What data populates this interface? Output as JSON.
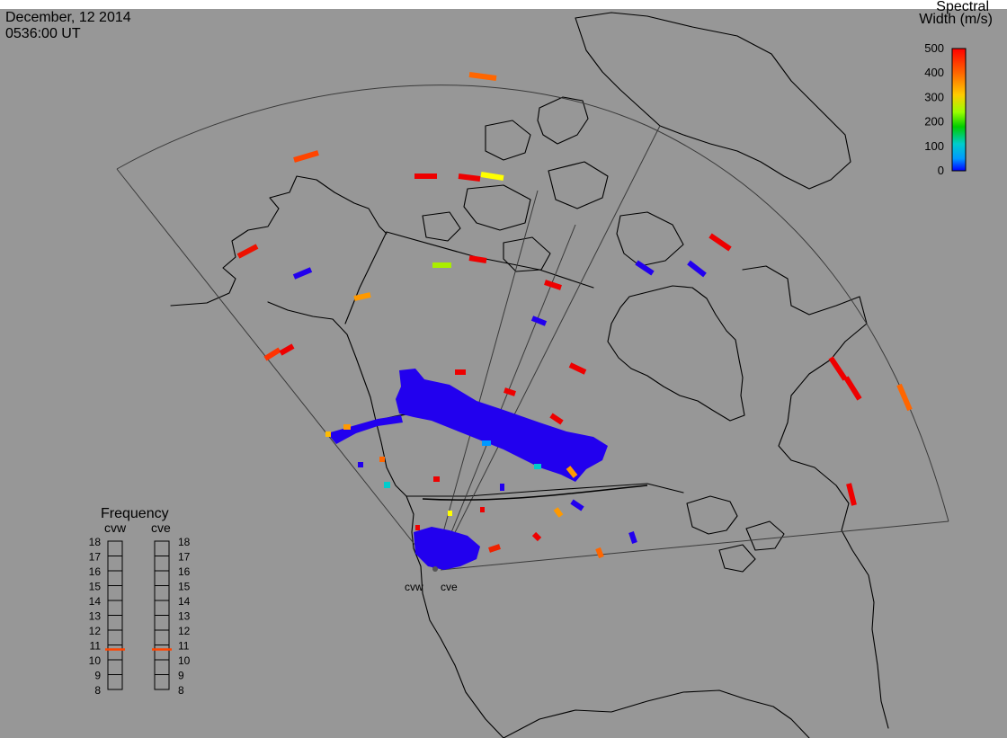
{
  "header": {
    "date": "December, 12 2014",
    "time": "0536:00 UT"
  },
  "color_bar": {
    "title_line1": "Spectral",
    "title_line2": "Width (m/s)",
    "ticks": [
      "500",
      "400",
      "300",
      "200",
      "100",
      "0"
    ],
    "colors": [
      "#ff0000",
      "#ff6600",
      "#ffcc00",
      "#99ff00",
      "#00cc00",
      "#00cccc",
      "#0099ff",
      "#0000ff"
    ]
  },
  "frequency_panel": {
    "title": "Frequency",
    "left_label": "cvw",
    "right_label": "cve",
    "ticks": [
      "18",
      "17",
      "16",
      "15",
      "14",
      "13",
      "12",
      "11",
      "10",
      "9",
      "8"
    ],
    "cvw_value_mhz": 10.7,
    "cve_value_mhz": 10.7,
    "marker_color": "#ff4400"
  },
  "radar_sites": {
    "west_label": "cvw",
    "east_label": "cve"
  },
  "map": {
    "background": "#979797",
    "frame_background": "#ffffff"
  }
}
